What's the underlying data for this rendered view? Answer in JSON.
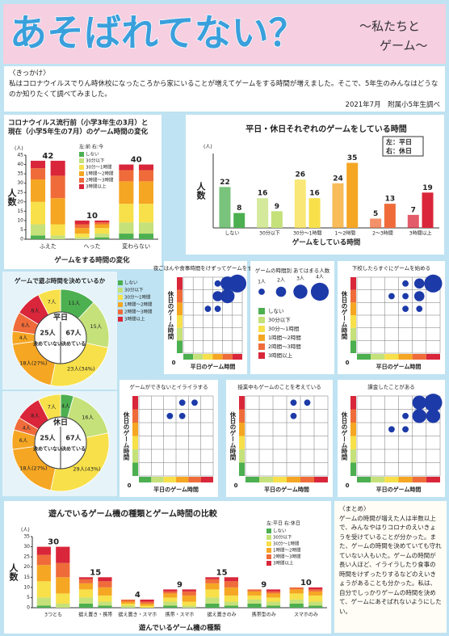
{
  "header": {
    "title": "あそばれてない？",
    "subtitle": [
      "〜私たちと",
      "ゲーム〜"
    ]
  },
  "intro": {
    "heading": "〈きっかけ〉",
    "text": "私はコロナウイルスでりん時休校になったころから家にいることが増えてゲームをする時間が増えました。そこで、5年生のみんなはどうなのか知りたくて調べてみました。",
    "note": "2021年7月　附属小5年生調べ"
  },
  "time_legend": {
    "labels": [
      "しない",
      "30分以下",
      "30分〜1時間",
      "1時間〜2時間",
      "2時間〜3時間",
      "3時間以上"
    ],
    "colors": [
      "#4caf50",
      "#c5e17a",
      "#f7e04a",
      "#f5a623",
      "#ef6c3a",
      "#d9263a"
    ]
  },
  "chart_data": [
    {
      "type": "stacked_bar",
      "title": [
        "コロナウイルス流行前（小学3年生の3月）と",
        "現在（小学5年生の7月）のゲーム時間の変化"
      ],
      "legend_note": "左:前 右:今",
      "ylabel": "人数",
      "yunit": "(人)",
      "xlabel": "ゲームをする時間の変化",
      "categories": [
        "ふえた",
        "へった",
        "変わらない"
      ],
      "totals": [
        42,
        10,
        40
      ],
      "ylim": [
        0,
        45
      ],
      "yticks": [
        0,
        5,
        10,
        15,
        20,
        25,
        30,
        35,
        40,
        45
      ],
      "series": [
        {
          "name": "しない",
          "color": "#4caf50",
          "values": [
            [
              2,
              0
            ],
            [
              0,
              1
            ],
            [
              3,
              3
            ]
          ]
        },
        {
          "name": "30分以下",
          "color": "#c5e17a",
          "values": [
            [
              6,
              2
            ],
            [
              1,
              2
            ],
            [
              6,
              6
            ]
          ]
        },
        {
          "name": "30分〜1時間",
          "color": "#f7e04a",
          "values": [
            [
              12,
              6
            ],
            [
              2,
              3
            ],
            [
              10,
              10
            ]
          ]
        },
        {
          "name": "1時間〜2時間",
          "color": "#f5a623",
          "values": [
            [
              12,
              14
            ],
            [
              3,
              2
            ],
            [
              12,
              12
            ]
          ]
        },
        {
          "name": "2時間〜3時間",
          "color": "#ef6c3a",
          "values": [
            [
              6,
              12
            ],
            [
              2,
              1
            ],
            [
              6,
              6
            ]
          ]
        },
        {
          "name": "3時間以上",
          "color": "#d9263a",
          "values": [
            [
              4,
              8
            ],
            [
              2,
              1
            ],
            [
              3,
              3
            ]
          ]
        }
      ]
    },
    {
      "type": "bar",
      "title": "平日・休日それぞれのゲームをしている時間",
      "legend_note": [
        "左：平日",
        "右：休日"
      ],
      "ylabel": "人数",
      "yunit": "(人)",
      "xlabel": "ゲームをしている時間",
      "categories": [
        "しない",
        "30分以下",
        "30分〜1時間",
        "1〜2時間",
        "2〜3時間",
        "3時間以上"
      ],
      "colors": [
        "#4caf50",
        "#c5e17a",
        "#f7e04a",
        "#f5a623",
        "#ef6c3a",
        "#d9263a"
      ],
      "ylim": [
        0,
        40
      ],
      "series": [
        {
          "name": "平日",
          "values": [
            22,
            16,
            26,
            24,
            5,
            7
          ]
        },
        {
          "name": "休日",
          "values": [
            8,
            9,
            16,
            35,
            13,
            19
          ]
        }
      ]
    },
    {
      "type": "donut",
      "title": "ゲームで遊ぶ時間を決めているか",
      "center": "平日",
      "halves": [
        {
          "name": "決めている",
          "total_label": "67人",
          "segments": [
            {
              "value": 11,
              "label": "11人",
              "color": "#4caf50"
            },
            {
              "value": 15,
              "label": "15人",
              "color": "#c5e17a"
            },
            {
              "value": 23,
              "label": "23人(34%)",
              "color": "#f7e04a"
            },
            {
              "value": 18,
              "label": "18人(27%)",
              "color": "#f5a623"
            }
          ]
        },
        {
          "name": "決めていない",
          "total_label": "25人",
          "segments": [
            {
              "value": 4,
              "label": "4人",
              "color": "#f5a623"
            },
            {
              "value": 6,
              "label": "6人",
              "color": "#ef6c3a"
            },
            {
              "value": 8,
              "label": "8人",
              "color": "#d9263a"
            },
            {
              "value": 7,
              "label": "7人",
              "color": "#f7e04a"
            }
          ]
        }
      ]
    },
    {
      "type": "donut",
      "center": "休日",
      "halves": [
        {
          "name": "決めている",
          "total_label": "67人",
          "segments": [
            {
              "value": 4,
              "label": "4人",
              "color": "#4caf50"
            },
            {
              "value": 16,
              "label": "16人",
              "color": "#c5e17a"
            },
            {
              "value": 29,
              "label": "29人(43%)",
              "color": "#f7e04a"
            },
            {
              "value": 18,
              "label": "18人(27%)",
              "color": "#f5a623"
            }
          ]
        },
        {
          "name": "決めていない",
          "total_label": "25人",
          "segments": [
            {
              "value": 6,
              "label": "6人",
              "color": "#f5a623"
            },
            {
              "value": 4,
              "label": "4人",
              "color": "#ef6c3a"
            },
            {
              "value": 8,
              "label": "8人",
              "color": "#d9263a"
            },
            {
              "value": 7,
              "label": "7人",
              "color": "#f7e04a"
            }
          ]
        }
      ]
    },
    {
      "type": "bubble",
      "title": "夜ごはんや食事時間をけずってゲームをする",
      "xlabel": "平日のゲーム時間",
      "ylabel": "休日のゲーム時間",
      "xlim": [
        0,
        6
      ],
      "ylim": [
        0,
        6
      ],
      "ticks": [
        0
      ],
      "x": [
        4,
        5,
        6,
        4,
        5,
        4,
        3
      ],
      "y": [
        6,
        6,
        6,
        5,
        5,
        4,
        4
      ],
      "size": [
        1,
        3,
        4,
        2,
        3,
        1,
        1
      ]
    },
    {
      "type": "bubble",
      "title": "下校したらすぐにゲームを始める",
      "xlabel": "平日のゲーム時間",
      "ylabel": "休日のゲーム時間",
      "xlim": [
        0,
        6
      ],
      "ylim": [
        0,
        6
      ],
      "ticks": [
        0
      ],
      "x": [
        4,
        5,
        6,
        3,
        4,
        5,
        5,
        4
      ],
      "y": [
        6,
        6,
        6,
        5,
        5,
        5,
        4,
        4
      ],
      "size": [
        1,
        2,
        4,
        1,
        1,
        2,
        1,
        1
      ]
    },
    {
      "type": "bubble",
      "title": "ゲームができないとイライラする",
      "xlabel": "平日のゲーム時間",
      "ylabel": "休日のゲーム時間",
      "xlim": [
        0,
        6
      ],
      "ylim": [
        0,
        6
      ],
      "ticks": [
        0
      ],
      "x": [
        3,
        4,
        5,
        4
      ],
      "y": [
        5,
        6,
        6,
        5
      ],
      "size": [
        1,
        1,
        1,
        1
      ]
    },
    {
      "type": "bubble",
      "title": "授業中もゲームのことを考えている",
      "xlabel": "平日のゲーム時間",
      "ylabel": "休日のゲーム時間",
      "xlim": [
        0,
        6
      ],
      "ylim": [
        0,
        6
      ],
      "ticks": [
        0
      ],
      "x": [
        4,
        5,
        4
      ],
      "y": [
        6,
        6,
        5
      ],
      "size": [
        1,
        1,
        1
      ]
    },
    {
      "type": "bubble",
      "title": "課金したことがある",
      "xlabel": "平日のゲーム時間",
      "ylabel": "休日のゲーム時間",
      "xlim": [
        0,
        6
      ],
      "ylim": [
        0,
        6
      ],
      "ticks": [
        0
      ],
      "x": [
        4,
        5,
        6,
        5,
        6,
        3,
        4
      ],
      "y": [
        5,
        5,
        6,
        6,
        5,
        4,
        4
      ],
      "size": [
        1,
        3,
        4,
        3,
        3,
        1,
        1
      ]
    },
    {
      "type": "stacked_bar",
      "title": "遊んでいるゲーム機の種類とゲーム時間の比較",
      "legend_note": "左:平日 右:休日",
      "ylabel": "人数",
      "yunit": "(人)",
      "xlabel": "遊んでいるゲーム機の種類",
      "categories": [
        "3つとも",
        "据え置き・携帯",
        "据え置き・スマホ",
        "携帯・スマホ",
        "据え置きのみ",
        "携帯型のみ",
        "スマホのみ"
      ],
      "totals": [
        30,
        15,
        4,
        9,
        15,
        9,
        10
      ],
      "ylim": [
        0,
        35
      ],
      "yticks": [
        0,
        5,
        10,
        15,
        20,
        25,
        30,
        35
      ],
      "series": [
        {
          "name": "しない",
          "color": "#4caf50",
          "values": [
            [
              1,
              0
            ],
            [
              2,
              1
            ],
            [
              0,
              0
            ],
            [
              1,
              0
            ],
            [
              2,
              1
            ],
            [
              2,
              1
            ],
            [
              2,
              1
            ]
          ]
        },
        {
          "name": "30分以下",
          "color": "#c5e17a",
          "values": [
            [
              4,
              2
            ],
            [
              3,
              2
            ],
            [
              1,
              0
            ],
            [
              2,
              1
            ],
            [
              3,
              2
            ],
            [
              2,
              2
            ],
            [
              2,
              2
            ]
          ]
        },
        {
          "name": "30分〜1時間",
          "color": "#f7e04a",
          "values": [
            [
              8,
              5
            ],
            [
              4,
              3
            ],
            [
              1,
              1
            ],
            [
              2,
              2
            ],
            [
              4,
              3
            ],
            [
              2,
              2
            ],
            [
              3,
              3
            ]
          ]
        },
        {
          "name": "1時間〜2時間",
          "color": "#f5a623",
          "values": [
            [
              8,
              8
            ],
            [
              3,
              4
            ],
            [
              1,
              1
            ],
            [
              2,
              3
            ],
            [
              3,
              4
            ],
            [
              2,
              2
            ],
            [
              2,
              2
            ]
          ]
        },
        {
          "name": "2時間〜3時間",
          "color": "#ef6c3a",
          "values": [
            [
              5,
              7
            ],
            [
              2,
              3
            ],
            [
              1,
              1
            ],
            [
              1,
              2
            ],
            [
              2,
              3
            ],
            [
              1,
              1
            ],
            [
              1,
              1
            ]
          ]
        },
        {
          "name": "3時間以上",
          "color": "#d9263a",
          "values": [
            [
              4,
              8
            ],
            [
              1,
              2
            ],
            [
              0,
              1
            ],
            [
              1,
              1
            ],
            [
              1,
              2
            ],
            [
              0,
              1
            ],
            [
              0,
              1
            ]
          ]
        }
      ]
    }
  ],
  "bubble_legend": {
    "title": "ゲームの時間別 あてはまる人数",
    "sizes": [
      1,
      2,
      3,
      4
    ],
    "size_labels": [
      "1人",
      "2人",
      "3人",
      "4人"
    ]
  },
  "summary": {
    "heading": "〈まとめ〉",
    "text": "ゲームの時間が増えた人は半数以上で、みんなやはりコロナのえいきょうを受けていることが分かった。また、ゲームの時間を決めていても守れていない人もいた。ゲームの時間が長い人ほど、イライラしたり食事の時間をけずったりするなどのえいきょうがあることも分かった。私は、自分でしっかりゲームの時間を決めて、ゲームにあそばれないようにしたい。"
  }
}
